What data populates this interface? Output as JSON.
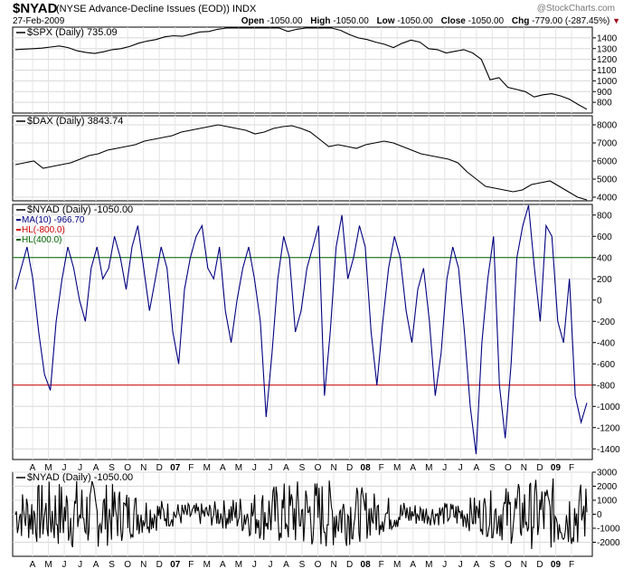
{
  "header": {
    "symbol": "$NYAD",
    "description": "(NYSE Advance-Decline Issues (EOD))",
    "exchange": "INDX",
    "date": "27-Feb-2009",
    "watermark": "@StockCharts.com",
    "open_label": "Open",
    "open_value": "-1050.00",
    "high_label": "High",
    "high_value": "-1050.00",
    "low_label": "Low",
    "low_value": "-1050.00",
    "close_label": "Close",
    "close_value": "-1050.00",
    "chg_label": "Chg",
    "chg_value": "-779.00 (-287.45%)",
    "chg_direction": "down"
  },
  "chart_data": [
    {
      "type": "line",
      "title": "$SPX (Daily) 735.09",
      "series": [
        {
          "name": "$SPX",
          "color": "#000000",
          "values": [
            1290,
            1295,
            1300,
            1305,
            1315,
            1325,
            1310,
            1280,
            1265,
            1255,
            1270,
            1290,
            1300,
            1320,
            1350,
            1370,
            1385,
            1410,
            1420,
            1415,
            1435,
            1455,
            1460,
            1480,
            1500,
            1510,
            1520,
            1535,
            1545,
            1525,
            1500,
            1460,
            1480,
            1520,
            1545,
            1540,
            1510,
            1470,
            1430,
            1400,
            1385,
            1360,
            1340,
            1310,
            1350,
            1380,
            1360,
            1300,
            1290,
            1260,
            1275,
            1290,
            1260,
            1200,
            1010,
            1030,
            940,
            920,
            900,
            850,
            870,
            880,
            860,
            830,
            780,
            735
          ],
          "x_label_hint": "approx. Mar 2006 - Feb 2009"
        }
      ],
      "ylim": [
        700,
        1500
      ],
      "yticks": [
        800,
        900,
        1000,
        1100,
        1200,
        1300,
        1400
      ]
    },
    {
      "type": "line",
      "title": "$DAX (Daily) 3843.74",
      "series": [
        {
          "name": "$DAX",
          "color": "#000000",
          "values": [
            5800,
            5900,
            6000,
            5600,
            5700,
            5800,
            5900,
            6100,
            6300,
            6400,
            6600,
            6700,
            6800,
            6900,
            7100,
            7200,
            7300,
            7400,
            7600,
            7700,
            7800,
            7900,
            8000,
            7900,
            7800,
            7700,
            7500,
            7600,
            7800,
            7900,
            7950,
            7800,
            7600,
            7200,
            6800,
            6900,
            6800,
            6700,
            6900,
            7000,
            7100,
            7000,
            6800,
            6600,
            6400,
            6300,
            6200,
            6100,
            5900,
            5400,
            5000,
            4600,
            4500,
            4400,
            4300,
            4400,
            4700,
            4800,
            4900,
            4600,
            4300,
            4000,
            3844
          ],
          "x_label_hint": "approx. Mar 2006 - Feb 2009"
        }
      ],
      "ylim": [
        3800,
        8500
      ],
      "yticks": [
        4000,
        5000,
        6000,
        7000,
        8000
      ]
    },
    {
      "type": "line",
      "title": "$NYAD (Daily) -1050.00",
      "legend": [
        {
          "label": "MA(10) -966.70",
          "color": "#000080"
        },
        {
          "label": "HL(-800.0)",
          "color": "#cc0000"
        },
        {
          "label": "HL(400.0)",
          "color": "#006400"
        }
      ],
      "series": [
        {
          "name": "MA(10)",
          "color": "#000080",
          "values": [
            100,
            300,
            500,
            200,
            -300,
            -700,
            -850,
            -200,
            200,
            500,
            300,
            0,
            -200,
            300,
            500,
            200,
            300,
            600,
            400,
            100,
            500,
            700,
            300,
            -100,
            200,
            500,
            300,
            -300,
            -600,
            100,
            400,
            600,
            700,
            300,
            200,
            500,
            -100,
            -400,
            0,
            300,
            500,
            200,
            -200,
            -1100,
            -500,
            200,
            600,
            400,
            -300,
            -100,
            300,
            500,
            700,
            -900,
            -300,
            500,
            800,
            200,
            400,
            700,
            500,
            -300,
            -800,
            -200,
            300,
            600,
            400,
            -100,
            -400,
            100,
            300,
            -200,
            -900,
            -500,
            200,
            500,
            300,
            -300,
            -1000,
            -1450,
            -400,
            200,
            600,
            -800,
            -1300,
            -600,
            400,
            700,
            900,
            300,
            -200,
            700,
            600,
            -200,
            -400,
            200,
            -900,
            -1150,
            -967
          ],
          "x_label_hint": "approx. Mar 2006 - Feb 2009"
        }
      ],
      "hlines": [
        -800,
        400
      ],
      "ylim": [
        -1500,
        900
      ],
      "yticks": [
        -1400,
        -1200,
        -1000,
        -800,
        -600,
        -400,
        -200,
        0,
        200,
        400,
        600,
        800
      ]
    },
    {
      "type": "line",
      "title": "$NYAD (Daily) -1050.00",
      "series": [
        {
          "name": "$NYAD",
          "color": "#000000",
          "values": []
        }
      ],
      "ylim": [
        -3000,
        3000
      ],
      "yticks": [
        -2000,
        -1000,
        0,
        1000,
        2000,
        3000
      ]
    }
  ],
  "x_axis": {
    "labels": [
      "A",
      "M",
      "J",
      "J",
      "A",
      "S",
      "O",
      "N",
      "D",
      "07",
      "F",
      "M",
      "A",
      "M",
      "J",
      "J",
      "A",
      "S",
      "O",
      "N",
      "D",
      "08",
      "F",
      "M",
      "A",
      "M",
      "J",
      "J",
      "A",
      "S",
      "O",
      "N",
      "D",
      "09",
      "F"
    ],
    "bold": [
      "07",
      "08",
      "09"
    ]
  }
}
